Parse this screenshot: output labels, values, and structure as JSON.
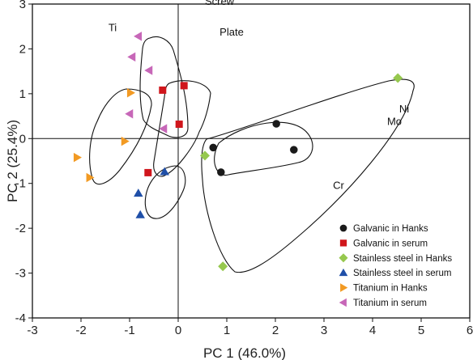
{
  "chart_data": {
    "type": "scatter",
    "title": "",
    "xlabel": "PC 1 (46.0%)",
    "ylabel": "PC 2 (25.4%)",
    "xlim": [
      -3,
      6
    ],
    "ylim": [
      -4,
      3
    ],
    "xticks": [
      -3,
      -2,
      -1,
      0,
      1,
      2,
      3,
      4,
      5,
      6
    ],
    "yticks": [
      -4,
      -3,
      -2,
      -1,
      0,
      1,
      2,
      3
    ],
    "grid": false,
    "legend_position": "bottom-right",
    "series": [
      {
        "name": "Galvanic in Hanks",
        "marker": "circle",
        "color": "#1a1a1a",
        "points": [
          [
            0.72,
            -0.2
          ],
          [
            0.88,
            -0.75
          ],
          [
            2.02,
            0.33
          ],
          [
            2.38,
            -0.25
          ]
        ]
      },
      {
        "name": "Galvanic in serum",
        "marker": "square",
        "color": "#d0161c",
        "points": [
          [
            -0.62,
            -0.76
          ],
          [
            0.02,
            0.32
          ],
          [
            -0.32,
            1.08
          ],
          [
            0.12,
            1.18
          ]
        ]
      },
      {
        "name": "Stainless steel in Hanks",
        "marker": "diamond",
        "color": "#96c84e",
        "points": [
          [
            0.55,
            -0.38
          ],
          [
            0.92,
            -2.85
          ],
          [
            4.52,
            1.35
          ]
        ]
      },
      {
        "name": "Stainless steel in serum",
        "marker": "triangle-up",
        "color": "#1f4fa8",
        "points": [
          [
            -0.82,
            -1.22
          ],
          [
            -0.28,
            -0.74
          ],
          [
            -0.78,
            -1.7
          ]
        ]
      },
      {
        "name": "Titanium in Hanks",
        "marker": "triangle-right",
        "color": "#f29a23",
        "points": [
          [
            -2.08,
            -0.42
          ],
          [
            -1.82,
            -0.87
          ],
          [
            -1.1,
            -0.06
          ],
          [
            -0.98,
            1.02
          ]
        ]
      },
      {
        "name": "Titanium in serum",
        "marker": "triangle-left",
        "color": "#c767b8",
        "points": [
          [
            -0.82,
            2.28
          ],
          [
            -0.95,
            1.82
          ],
          [
            -0.6,
            1.52
          ],
          [
            -1.0,
            0.55
          ],
          [
            -0.3,
            0.22
          ]
        ]
      }
    ],
    "annotations": [
      {
        "text": "Screw",
        "x": 0.85,
        "y": 2.98
      },
      {
        "text": "Plate",
        "x": 1.1,
        "y": 2.3
      },
      {
        "text": "Ti",
        "x": -1.35,
        "y": 2.4
      },
      {
        "text": "Ni",
        "x": 4.65,
        "y": 0.58
      },
      {
        "text": "Mo",
        "x": 4.45,
        "y": 0.3
      },
      {
        "text": "Cr",
        "x": 3.3,
        "y": -1.12
      }
    ]
  }
}
